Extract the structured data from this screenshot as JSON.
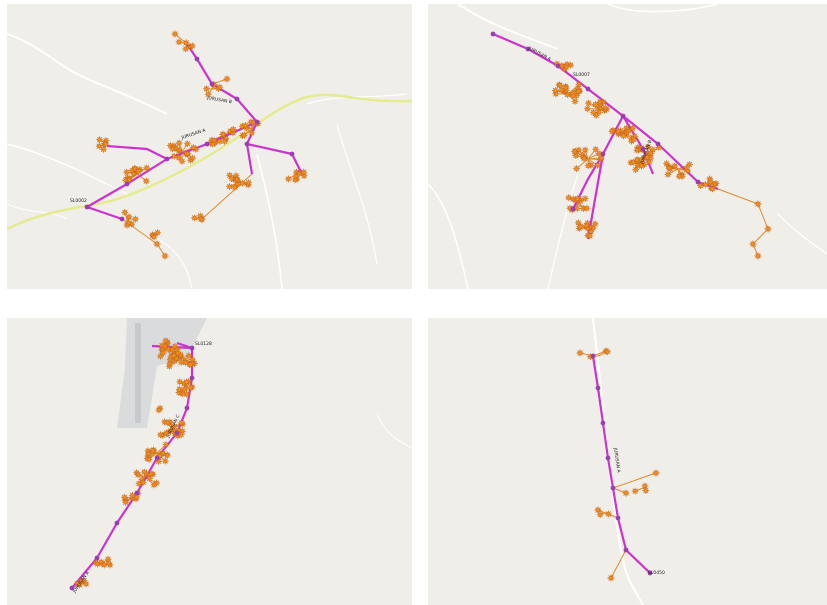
{
  "map_panels": [
    {
      "id": "p1",
      "labels": {
        "substation": "SL0002",
        "branch_a": "JURUSAN A",
        "branch_b": "JURUSAN B"
      }
    },
    {
      "id": "p2",
      "labels": {
        "substation": "SL0007",
        "branch_a": "JURUSAN A",
        "branch_b": "JURUSAN B"
      }
    },
    {
      "id": "p3",
      "labels": {
        "substation": "SL0128",
        "branch_a": "JURUSAN A",
        "branch_c": "JURUSAN C"
      }
    },
    {
      "id": "p4",
      "labels": {
        "substation": "SL0450",
        "branch_a": "JURUSAN A"
      }
    }
  ],
  "colors": {
    "map_background": "#f0eee9",
    "road": "#ffffff",
    "highway": "#eef2a8",
    "feeder_line": "#cc33cc",
    "pole_marker": "#9a3fb0",
    "customer_marker": "#f28c1e",
    "service_drop": "#e08a2e",
    "airstrip": "#d9dbdd"
  },
  "icons": [
    "customer-star-icon",
    "pole-dot-icon"
  ]
}
